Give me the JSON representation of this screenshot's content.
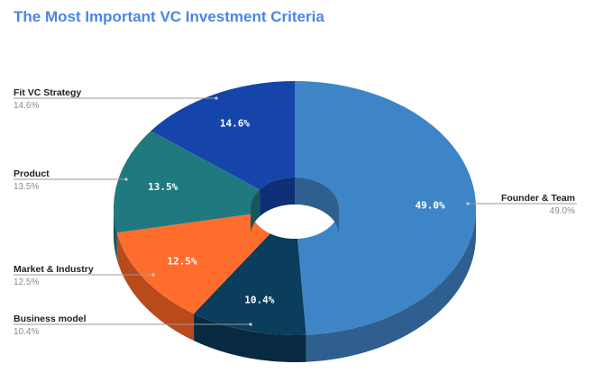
{
  "chart_data": {
    "type": "pie",
    "style": "3d-donut",
    "title": "The Most Important VC Investment Criteria",
    "slices": [
      {
        "label": "Founder & Team",
        "value": 49.0,
        "display": "49.0%",
        "color": "#3d85c6",
        "side": "#2e5f8f"
      },
      {
        "label": "Business model",
        "value": 10.4,
        "display": "10.4%",
        "color": "#0b3d5c",
        "side": "#072a40"
      },
      {
        "label": "Market & Industry",
        "value": 12.5,
        "display": "12.5%",
        "color": "#ff6d2c",
        "side": "#b84a1c"
      },
      {
        "label": "Product",
        "value": 13.5,
        "display": "13.5%",
        "color": "#20797f",
        "side": "#17575c"
      },
      {
        "label": "Fit VC Strategy",
        "value": 14.6,
        "display": "14.6%",
        "color": "#1544aa",
        "side": "#0e2f78"
      }
    ],
    "legend": "external labels with leader lines"
  }
}
